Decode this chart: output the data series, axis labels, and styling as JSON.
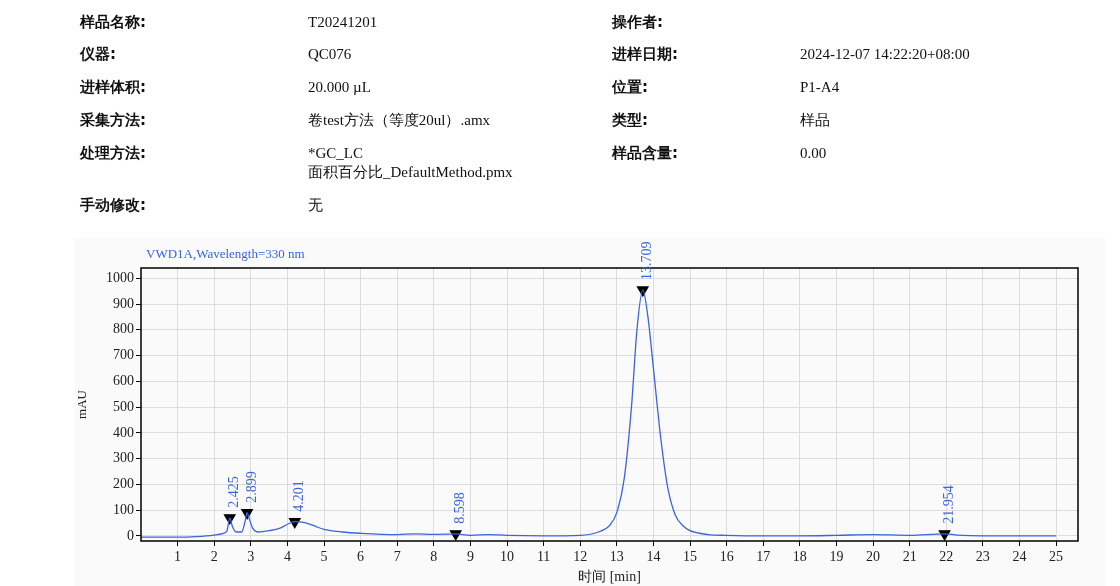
{
  "chart_data": {
    "type": "line",
    "title": "VWD1A,Wavelength=330 nm",
    "xlabel": "时间 [min]",
    "ylabel": "mAU",
    "xlim": [
      0,
      25.6
    ],
    "ylim": [
      -20,
      1040
    ],
    "xticks": [
      1,
      2,
      3,
      4,
      5,
      6,
      7,
      8,
      9,
      10,
      11,
      12,
      13,
      14,
      15,
      16,
      17,
      18,
      19,
      20,
      21,
      22,
      23,
      24,
      25
    ],
    "yticks": [
      0,
      100,
      200,
      300,
      400,
      500,
      600,
      700,
      800,
      900,
      1000
    ],
    "grid": true,
    "marker": "none",
    "line_style": "solid",
    "series": [
      {
        "color": "#3c64dc",
        "x": [
          0,
          1,
          1.5,
          2,
          2.25,
          2.35,
          2.425,
          2.5,
          2.6,
          2.75,
          2.85,
          2.899,
          2.95,
          3.05,
          3.2,
          3.5,
          3.8,
          4.0,
          4.201,
          4.5,
          4.8,
          5.0,
          5.5,
          6,
          7,
          7.5,
          8,
          8.598,
          9,
          9.5,
          10,
          11,
          12,
          12.5,
          12.8,
          13,
          13.2,
          13.4,
          13.55,
          13.709,
          13.85,
          14,
          14.2,
          14.4,
          14.6,
          14.8,
          15,
          15.5,
          16,
          17,
          18,
          19,
          20,
          21,
          21.954,
          22.3,
          23,
          24,
          25
        ],
        "values": [
          -5,
          -5,
          -3,
          3,
          10,
          20,
          70,
          35,
          15,
          15,
          60,
          90,
          70,
          30,
          15,
          20,
          30,
          45,
          55,
          50,
          35,
          25,
          15,
          10,
          5,
          8,
          6,
          8,
          2,
          5,
          2,
          0,
          2,
          15,
          40,
          90,
          220,
          500,
          800,
          955,
          850,
          650,
          380,
          180,
          80,
          40,
          20,
          5,
          2,
          0,
          0,
          2,
          5,
          2,
          8,
          3,
          0,
          0,
          0
        ]
      },
      {
        "type": "scatter",
        "marker": "triangle",
        "color": "#000000",
        "x": [
          2.425,
          2.899,
          4.201,
          8.598,
          13.709,
          21.954
        ],
        "values": [
          70,
          90,
          55,
          8,
          955,
          8
        ]
      }
    ],
    "annotations": [
      "样品名称:",
      "T20241201",
      "操作者:",
      "仪器:",
      "QC076",
      "进样日期:",
      "2024-12-07 14:22:20+08:00",
      "进样体积:",
      "20.000 µL",
      "位置:",
      "P1-A4",
      "采集方法:",
      "卷test方法（等度20ul）.amx",
      "类型:",
      "样品",
      "处理方法:",
      "*GC_LC\n面积百分比_DefaultMethod.pmx",
      "样品含量:",
      "0.00",
      "手动修改:",
      "无",
      {
        "text": "2.425",
        "x": 2.425,
        "y": 70
      },
      {
        "text": "2.899",
        "x": 2.899,
        "y": 90
      },
      {
        "text": "4.201",
        "x": 4.201,
        "y": 55
      },
      {
        "text": "8.598",
        "x": 8.598,
        "y": 8
      },
      {
        "text": "13.709",
        "x": 13.709,
        "y": 955
      },
      {
        "text": "21.954",
        "x": 21.954,
        "y": 8
      }
    ]
  }
}
